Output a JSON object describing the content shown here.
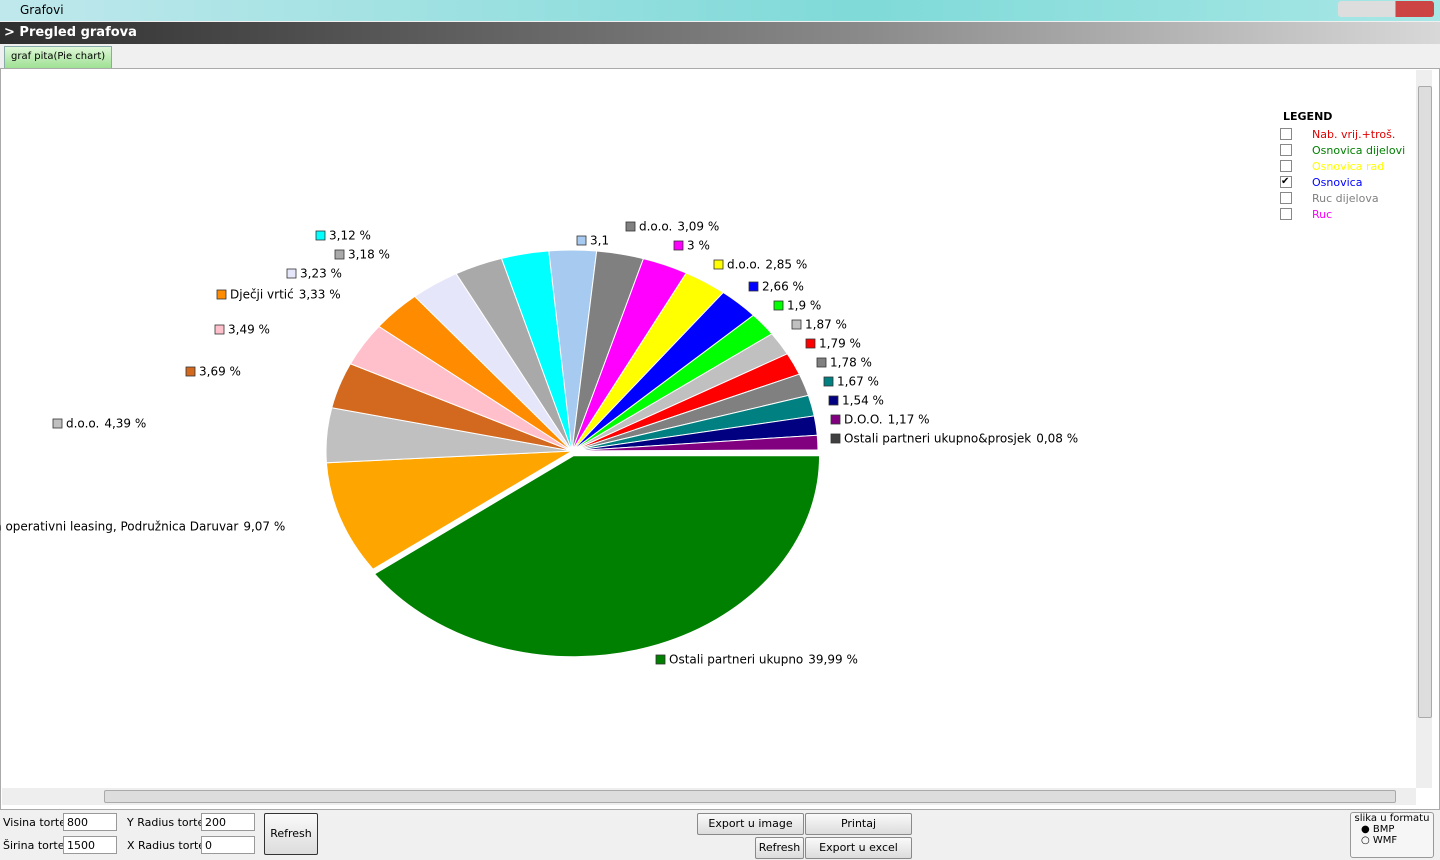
{
  "window": {
    "title": "Grafovi",
    "header": "> Pregled grafova",
    "tab": "graf pita(Pie chart)"
  },
  "chart_data": {
    "type": "pie",
    "categories": [
      "Ostali partneri ukupno",
      "za operativni leasing, Podružnica Daruvar",
      "d.o.o.",
      null,
      null,
      "Dječji vrtić",
      null,
      null,
      null,
      null,
      "d.o.o.",
      null,
      "d.o.o.",
      null,
      null,
      null,
      null,
      null,
      null,
      null,
      "D.O.O.",
      "Ostali partneri ukupno&prosjek"
    ],
    "values": [
      39.99,
      9.07,
      4.39,
      3.69,
      3.49,
      3.33,
      3.23,
      3.18,
      3.12,
      3.1,
      3.09,
      3,
      2.85,
      2.66,
      1.9,
      1.87,
      1.79,
      1.78,
      1.67,
      1.54,
      1.17,
      0.08
    ],
    "value_labels": [
      "39,99 %",
      "9,07 %",
      "4,39 %",
      "3,69 %",
      "3,49 %",
      "3,33 %",
      "3,23 %",
      "3,18 %",
      "3,12 %",
      "3,1",
      "3,09 %",
      "3 %",
      "2,85 %",
      "2,66 %",
      "1,9 %",
      "1,87 %",
      "1,79 %",
      "1,78 %",
      "1,67 %",
      "1,54 %",
      "1,17 %",
      "0,08 %"
    ],
    "colors": [
      "#008000",
      "#ffa500",
      "#c0c0c0",
      "#d2691e",
      "#ffc0cb",
      "#ff8c00",
      "#e6e6fa",
      "#a9a9a9",
      "#00ffff",
      "#a6caf0",
      "#808080",
      "#ff00ff",
      "#ffff00",
      "#0000ff",
      "#00ff00",
      "#c0c0c0",
      "#ff0000",
      "#808080",
      "#008080",
      "#000080",
      "#800080",
      "#404040"
    ]
  },
  "legend": {
    "title": "LEGEND",
    "items": [
      {
        "label": "Nab. vrij.+troš.",
        "color": "#e00000",
        "checked": false
      },
      {
        "label": "Osnovica dijelovi",
        "color": "#008000",
        "checked": false
      },
      {
        "label": "Osnovica rad",
        "color": "#ffff00",
        "checked": false
      },
      {
        "label": "Osnovica",
        "color": "#0000ff",
        "checked": true
      },
      {
        "label": "Ruc dijelova",
        "color": "#808080",
        "checked": false
      },
      {
        "label": "Ruc",
        "color": "#ff00ff",
        "checked": false
      }
    ]
  },
  "controls": {
    "visina_label": "Visina torte",
    "visina": "800",
    "sirina_label": "Širina torte",
    "sirina": "1500",
    "yradius_label": "Y Radius torte",
    "yradius": "200",
    "xradius_label": "X Radius torte",
    "xradius": "0",
    "refresh1": "Refresh",
    "export_image": "Export u image",
    "print": "Printaj",
    "refresh2": "Refresh",
    "export_excel": "Export u excel",
    "format_title": "slika u formatu",
    "bmp": "BMP",
    "wmf": "WMF"
  }
}
